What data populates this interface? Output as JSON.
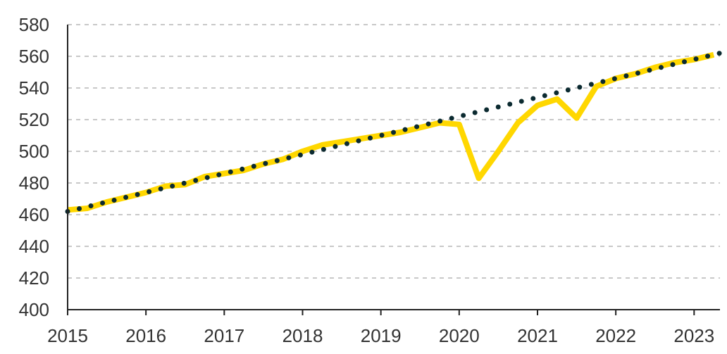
{
  "colors": {
    "actual_line": "#FFD700",
    "trend_line": "#0B2A30",
    "grid": "#C8C8C8",
    "axis": "#222222",
    "tick_text": "#333333"
  },
  "chart_data": {
    "type": "line",
    "title": "",
    "xlabel": "",
    "ylabel": "",
    "xlim": [
      2015,
      2023.33
    ],
    "ylim": [
      400,
      580
    ],
    "y_ticks": [
      "400",
      "420",
      "440",
      "460",
      "480",
      "500",
      "520",
      "540",
      "560",
      "580"
    ],
    "x_ticks": [
      "2015",
      "2016",
      "2017",
      "2018",
      "2019",
      "2020",
      "2021",
      "2022",
      "2023"
    ],
    "grid": "horizontal dashed",
    "legend": "none",
    "series": [
      {
        "style": "solid",
        "color": "#FFD700",
        "x": [
          2015.0,
          2015.25,
          2015.5,
          2015.75,
          2016.0,
          2016.25,
          2016.5,
          2016.75,
          2017.0,
          2017.25,
          2017.5,
          2017.75,
          2018.0,
          2018.25,
          2018.5,
          2018.75,
          2019.0,
          2019.25,
          2019.5,
          2019.75,
          2020.0,
          2020.25,
          2020.5,
          2020.75,
          2021.0,
          2021.25,
          2021.5,
          2021.75,
          2022.0,
          2022.25,
          2022.5,
          2022.75,
          2023.0,
          2023.25
        ],
        "y": [
          463,
          464,
          468,
          471,
          474,
          478,
          479,
          484,
          486,
          488,
          492,
          495,
          500,
          504,
          506,
          508,
          510,
          512,
          515,
          518,
          517,
          483,
          500,
          518,
          529,
          533,
          521,
          541,
          546,
          549,
          553,
          556,
          558,
          561
        ]
      },
      {
        "style": "dotted",
        "color": "#0B2A30",
        "x": [
          2015.0,
          2023.33
        ],
        "y": [
          462,
          562
        ]
      }
    ]
  }
}
